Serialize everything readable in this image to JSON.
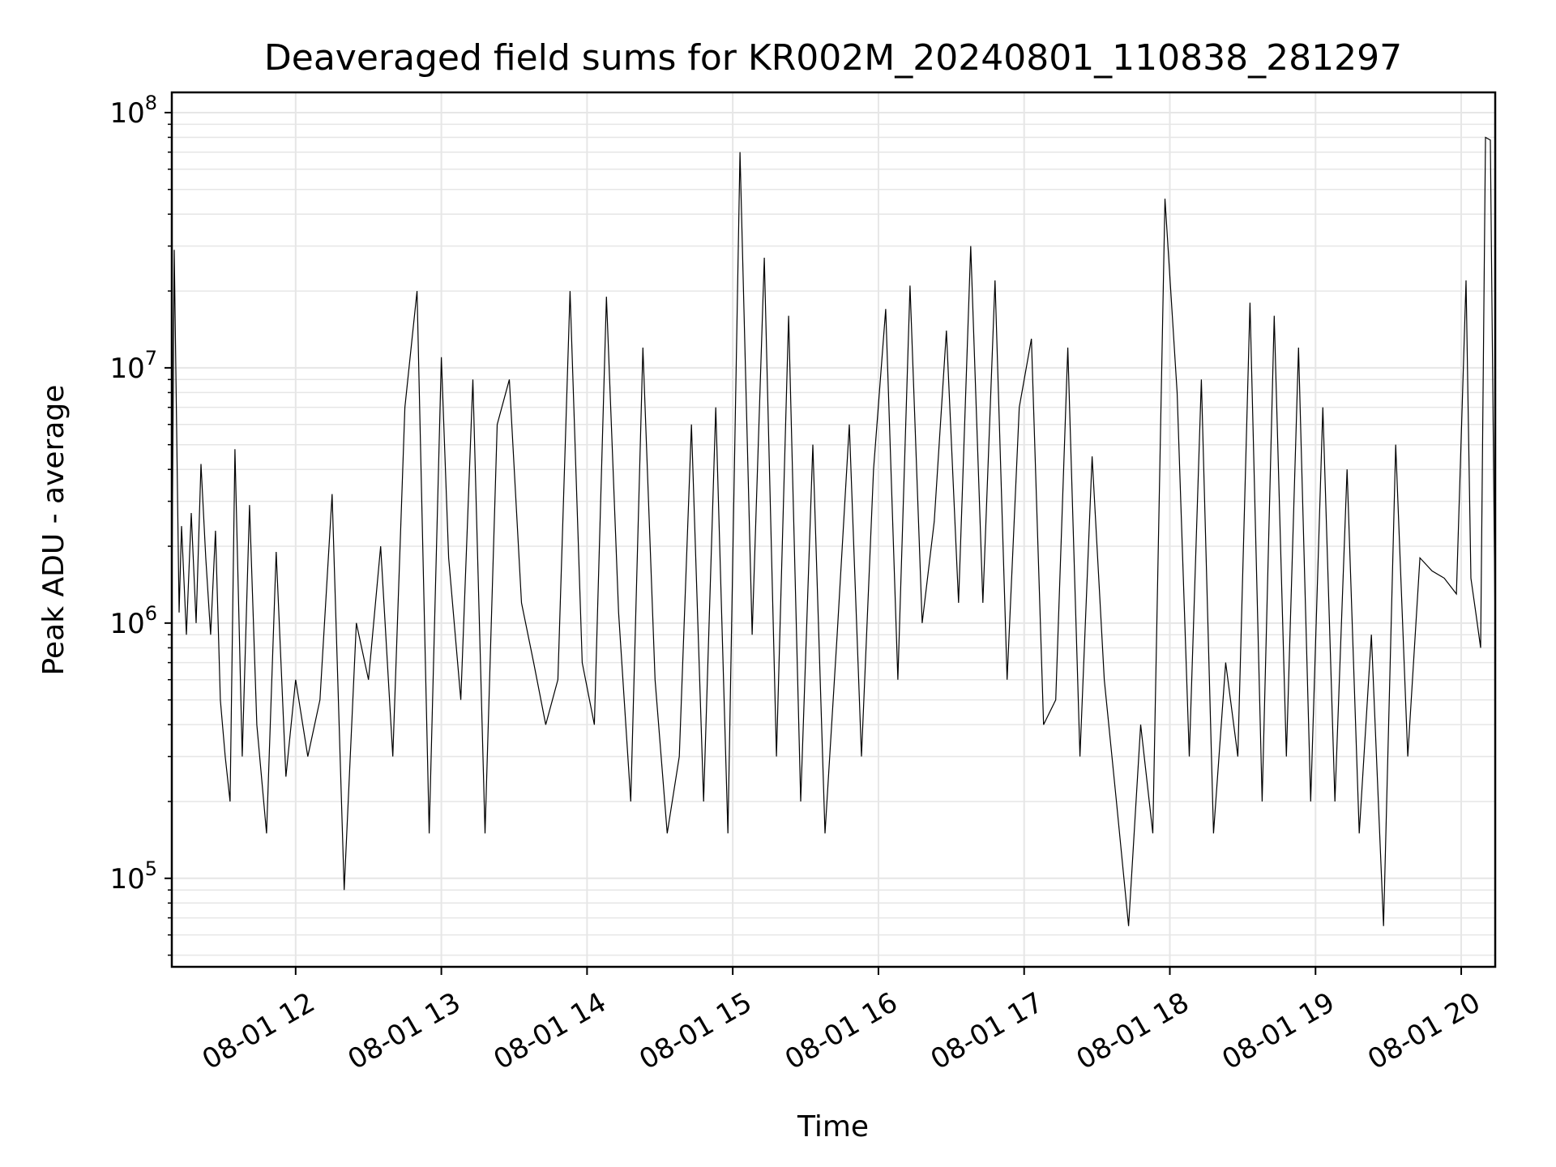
{
  "chart_data": {
    "type": "line",
    "title": "Deaveraged field sums for KR002M_20240801_110838_281297",
    "xlabel": "Time",
    "ylabel": "Peak ADU - average",
    "yscale": "log",
    "ylim": [
      45000,
      120000000
    ],
    "xlim": [
      "2024-08-01 11:09",
      "2024-08-01 20:14"
    ],
    "grid": true,
    "line_color": "#000000",
    "grid_color": "#e6e6e6",
    "y_ticks": [
      {
        "base": "10",
        "exp": "5",
        "value": 100000
      },
      {
        "base": "10",
        "exp": "6",
        "value": 1000000
      },
      {
        "base": "10",
        "exp": "7",
        "value": 10000000
      },
      {
        "base": "10",
        "exp": "8",
        "value": 100000000
      }
    ],
    "x_ticks": [
      {
        "label": "08-01 12",
        "value": "2024-08-01 12:00"
      },
      {
        "label": "08-01 13",
        "value": "2024-08-01 13:00"
      },
      {
        "label": "08-01 14",
        "value": "2024-08-01 14:00"
      },
      {
        "label": "08-01 15",
        "value": "2024-08-01 15:00"
      },
      {
        "label": "08-01 16",
        "value": "2024-08-01 16:00"
      },
      {
        "label": "08-01 17",
        "value": "2024-08-01 17:00"
      },
      {
        "label": "08-01 18",
        "value": "2024-08-01 18:00"
      },
      {
        "label": "08-01 19",
        "value": "2024-08-01 19:00"
      },
      {
        "label": "08-01 20",
        "value": "2024-08-01 20:00"
      }
    ],
    "series": [
      {
        "x": [
          "2024-08-01 11:09",
          "2024-08-01 11:10",
          "2024-08-01 11:12",
          "2024-08-01 11:13",
          "2024-08-01 11:15",
          "2024-08-01 11:17",
          "2024-08-01 11:19",
          "2024-08-01 11:21",
          "2024-08-01 11:23",
          "2024-08-01 11:25",
          "2024-08-01 11:27",
          "2024-08-01 11:29",
          "2024-08-01 11:31",
          "2024-08-01 11:33",
          "2024-08-01 11:35",
          "2024-08-01 11:38",
          "2024-08-01 11:41",
          "2024-08-01 11:44",
          "2024-08-01 11:48",
          "2024-08-01 11:52",
          "2024-08-01 11:56",
          "2024-08-01 12:00",
          "2024-08-01 12:05",
          "2024-08-01 12:10",
          "2024-08-01 12:15",
          "2024-08-01 12:20",
          "2024-08-01 12:25",
          "2024-08-01 12:30",
          "2024-08-01 12:35",
          "2024-08-01 12:40",
          "2024-08-01 12:45",
          "2024-08-01 12:50",
          "2024-08-01 12:55",
          "2024-08-01 13:00",
          "2024-08-01 13:03",
          "2024-08-01 13:08",
          "2024-08-01 13:13",
          "2024-08-01 13:18",
          "2024-08-01 13:23",
          "2024-08-01 13:28",
          "2024-08-01 13:33",
          "2024-08-01 13:38",
          "2024-08-01 13:43",
          "2024-08-01 13:48",
          "2024-08-01 13:53",
          "2024-08-01 13:58",
          "2024-08-01 14:03",
          "2024-08-01 14:08",
          "2024-08-01 14:13",
          "2024-08-01 14:18",
          "2024-08-01 14:23",
          "2024-08-01 14:28",
          "2024-08-01 14:33",
          "2024-08-01 14:38",
          "2024-08-01 14:43",
          "2024-08-01 14:48",
          "2024-08-01 14:53",
          "2024-08-01 14:58",
          "2024-08-01 15:03",
          "2024-08-01 15:08",
          "2024-08-01 15:13",
          "2024-08-01 15:18",
          "2024-08-01 15:23",
          "2024-08-01 15:28",
          "2024-08-01 15:33",
          "2024-08-01 15:38",
          "2024-08-01 15:43",
          "2024-08-01 15:48",
          "2024-08-01 15:53",
          "2024-08-01 15:58",
          "2024-08-01 16:03",
          "2024-08-01 16:08",
          "2024-08-01 16:13",
          "2024-08-01 16:18",
          "2024-08-01 16:23",
          "2024-08-01 16:28",
          "2024-08-01 16:33",
          "2024-08-01 16:38",
          "2024-08-01 16:43",
          "2024-08-01 16:48",
          "2024-08-01 16:53",
          "2024-08-01 16:58",
          "2024-08-01 17:03",
          "2024-08-01 17:08",
          "2024-08-01 17:13",
          "2024-08-01 17:18",
          "2024-08-01 17:23",
          "2024-08-01 17:28",
          "2024-08-01 17:33",
          "2024-08-01 17:38",
          "2024-08-01 17:43",
          "2024-08-01 17:48",
          "2024-08-01 17:53",
          "2024-08-01 17:58",
          "2024-08-01 18:03",
          "2024-08-01 18:08",
          "2024-08-01 18:13",
          "2024-08-01 18:18",
          "2024-08-01 18:23",
          "2024-08-01 18:28",
          "2024-08-01 18:33",
          "2024-08-01 18:38",
          "2024-08-01 18:43",
          "2024-08-01 18:48",
          "2024-08-01 18:53",
          "2024-08-01 18:58",
          "2024-08-01 19:03",
          "2024-08-01 19:08",
          "2024-08-01 19:13",
          "2024-08-01 19:18",
          "2024-08-01 19:23",
          "2024-08-01 19:28",
          "2024-08-01 19:33",
          "2024-08-01 19:38",
          "2024-08-01 19:43",
          "2024-08-01 19:48",
          "2024-08-01 19:53",
          "2024-08-01 19:58",
          "2024-08-01 20:02",
          "2024-08-01 20:04",
          "2024-08-01 20:06",
          "2024-08-01 20:08",
          "2024-08-01 20:10",
          "2024-08-01 20:12",
          "2024-08-01 20:14"
        ],
        "y": [
          1200000,
          29000000,
          1100000,
          2400000,
          900000,
          2700000,
          1000000,
          4200000,
          1800000,
          900000,
          2300000,
          500000,
          300000,
          200000,
          4800000,
          300000,
          2900000,
          400000,
          150000,
          1900000,
          250000,
          600000,
          300000,
          500000,
          3200000,
          90000,
          1000000,
          600000,
          2000000,
          300000,
          7000000,
          20000000,
          150000,
          11000000,
          1800000,
          500000,
          9000000,
          150000,
          6000000,
          9000000,
          1200000,
          700000,
          400000,
          600000,
          20000000,
          700000,
          400000,
          19000000,
          1100000,
          200000,
          12000000,
          600000,
          150000,
          300000,
          6000000,
          200000,
          7000000,
          150000,
          70000000,
          900000,
          27000000,
          300000,
          16000000,
          200000,
          5000000,
          150000,
          900000,
          6000000,
          300000,
          4000000,
          17000000,
          600000,
          21000000,
          1000000,
          2500000,
          14000000,
          1200000,
          30000000,
          1200000,
          22000000,
          600000,
          7000000,
          13000000,
          400000,
          500000,
          12000000,
          300000,
          4500000,
          600000,
          200000,
          65000,
          400000,
          150000,
          46000000,
          8000000,
          300000,
          9000000,
          150000,
          700000,
          300000,
          18000000,
          200000,
          16000000,
          300000,
          12000000,
          200000,
          7000000,
          200000,
          4000000,
          150000,
          900000,
          65000,
          5000000,
          300000,
          1800000,
          1600000,
          1500000,
          1300000,
          22000000,
          1500000,
          1100000,
          800000,
          80000000,
          78000000,
          900000
        ]
      }
    ]
  }
}
